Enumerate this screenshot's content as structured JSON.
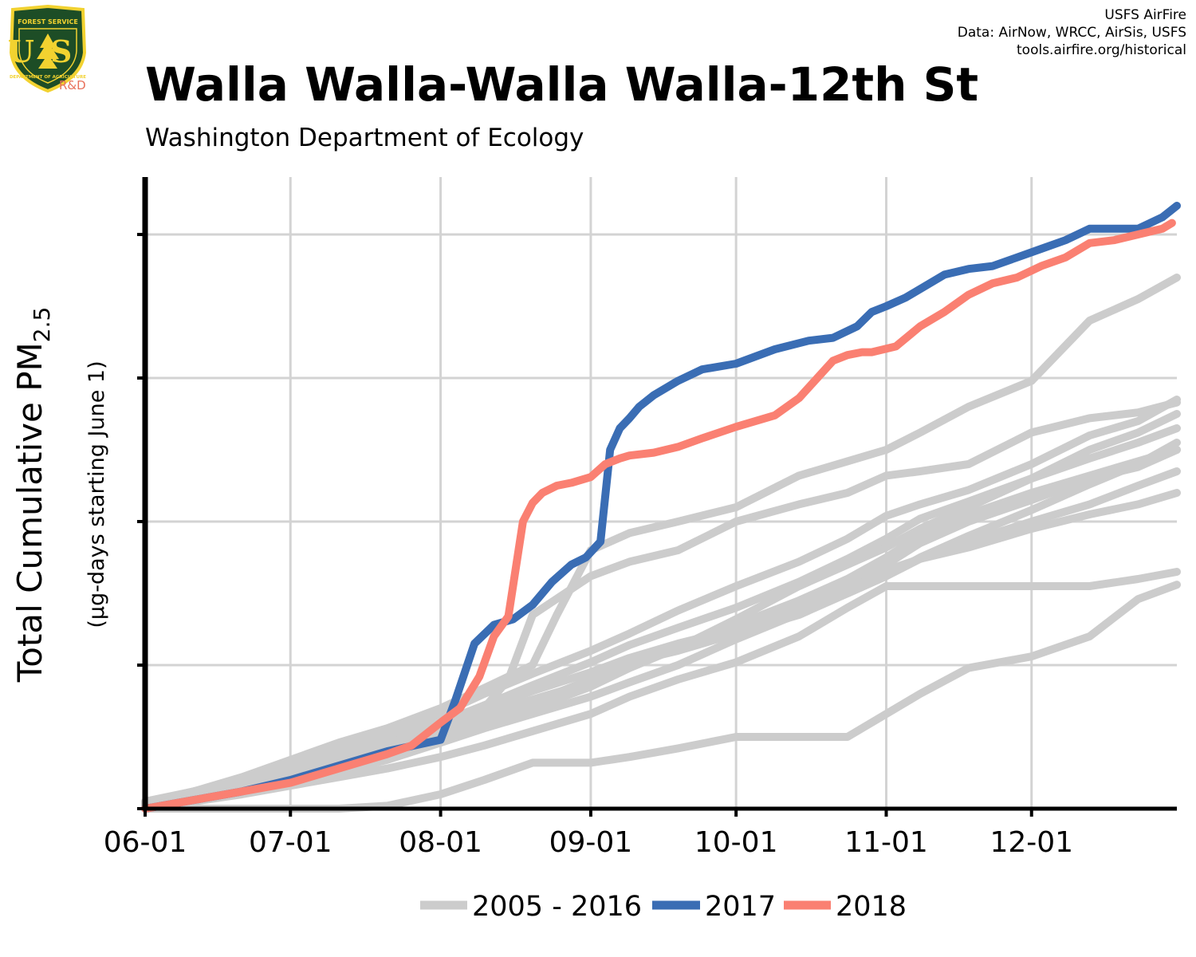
{
  "header": {
    "title": "Walla Walla-Walla Walla-12th St",
    "subtitle": "Washington Department of Ecology",
    "credits": [
      "USFS AirFire",
      "Data: AirNow, WRCC, AirSis, USFS",
      "tools.airfire.org/historical"
    ]
  },
  "logo": {
    "icon": "forest-service-shield-icon",
    "top_text": "FOREST SERVICE",
    "letters": "US",
    "bottom_text": "DEPARTMENT OF AGRICULTURE",
    "tag": "R&D"
  },
  "chart_data": {
    "type": "line",
    "xlabel": "",
    "ylabel": "Total Cumulative PM",
    "ylabel_subscript": "2.5",
    "ylabel_secondary": "(µg-days starting June 1)",
    "x_ticks": [
      "06-01",
      "07-01",
      "08-01",
      "09-01",
      "10-01",
      "11-01",
      "12-01"
    ],
    "x_tick_days": [
      0,
      30,
      61,
      92,
      122,
      153,
      183
    ],
    "xlim": [
      0,
      213
    ],
    "ylim": [
      0,
      4.4
    ],
    "y_grid": [
      1,
      2,
      3,
      4
    ],
    "y_tick_labels": [],
    "grid": true,
    "legend": {
      "position": "bottom",
      "entries": [
        "2005 - 2016",
        "2017",
        "2018"
      ]
    },
    "colors": {
      "historical": "#cccccc",
      "y2017": "#3a6db4",
      "y2018": "#fa8072",
      "grid": "#d3d3d3"
    },
    "series": [
      {
        "name": "2005 - 2016",
        "group": "historical",
        "x": [
          0,
          10,
          20,
          30,
          40,
          50,
          61,
          70,
          80,
          92,
          100,
          110,
          122,
          135,
          145,
          153,
          160,
          170,
          183,
          195,
          205,
          213
        ],
        "y": [
          0.02,
          0.06,
          0.12,
          0.18,
          0.26,
          0.34,
          0.46,
          0.56,
          0.66,
          0.78,
          0.88,
          1.0,
          1.18,
          1.36,
          1.5,
          1.62,
          1.75,
          1.9,
          2.08,
          2.26,
          2.4,
          2.55
        ]
      },
      {
        "name": "2005 - 2016",
        "group": "historical",
        "x": [
          0,
          10,
          20,
          30,
          40,
          50,
          61,
          70,
          80,
          92,
          100,
          110,
          122,
          135,
          145,
          153,
          160,
          170,
          183,
          195,
          205,
          213
        ],
        "y": [
          0.03,
          0.08,
          0.14,
          0.22,
          0.3,
          0.38,
          0.5,
          0.6,
          0.7,
          0.85,
          0.98,
          1.12,
          1.32,
          1.55,
          1.7,
          1.82,
          1.95,
          2.1,
          2.3,
          2.5,
          2.62,
          2.75
        ]
      },
      {
        "name": "2005 - 2016",
        "group": "historical",
        "x": [
          0,
          10,
          20,
          30,
          40,
          50,
          61,
          70,
          80,
          92,
          100,
          110,
          122,
          135,
          145,
          153,
          160,
          170,
          183,
          195,
          205,
          213
        ],
        "y": [
          0.02,
          0.07,
          0.13,
          0.2,
          0.28,
          0.37,
          0.48,
          0.58,
          0.72,
          0.88,
          1.0,
          1.12,
          1.28,
          1.45,
          1.6,
          1.75,
          1.9,
          2.05,
          2.2,
          2.32,
          2.42,
          2.5
        ]
      },
      {
        "name": "2005 - 2016",
        "group": "historical",
        "x": [
          0,
          10,
          20,
          30,
          40,
          50,
          61,
          70,
          80,
          92,
          100,
          110,
          122,
          135,
          145,
          153,
          160,
          170,
          183,
          195,
          205,
          213
        ],
        "y": [
          0.03,
          0.1,
          0.18,
          0.28,
          0.36,
          0.44,
          0.56,
          0.7,
          0.82,
          0.95,
          1.05,
          1.15,
          1.25,
          1.4,
          1.55,
          1.7,
          1.85,
          2.0,
          2.15,
          2.3,
          2.38,
          2.5
        ]
      },
      {
        "name": "2005 - 2016",
        "group": "historical",
        "x": [
          0,
          10,
          20,
          30,
          40,
          50,
          61,
          70,
          80,
          92,
          100,
          110,
          122,
          135,
          145,
          153,
          160,
          170,
          183,
          195,
          205,
          213
        ],
        "y": [
          0.04,
          0.12,
          0.2,
          0.3,
          0.4,
          0.48,
          0.6,
          0.72,
          0.86,
          1.02,
          1.14,
          1.26,
          1.4,
          1.58,
          1.74,
          1.88,
          2.02,
          2.14,
          2.3,
          2.44,
          2.55,
          2.65
        ]
      },
      {
        "name": "2005 - 2016",
        "group": "historical",
        "x": [
          0,
          10,
          20,
          30,
          40,
          50,
          61,
          70,
          80,
          92,
          100,
          110,
          122,
          135,
          145,
          153,
          160,
          170,
          183,
          195,
          205,
          213
        ],
        "y": [
          0.03,
          0.09,
          0.16,
          0.24,
          0.33,
          0.42,
          0.52,
          0.62,
          0.74,
          0.9,
          1.02,
          1.1,
          1.22,
          1.35,
          1.5,
          1.62,
          1.74,
          1.86,
          2.0,
          2.12,
          2.25,
          2.35
        ]
      },
      {
        "name": "2005 - 2016",
        "group": "historical",
        "x": [
          0,
          10,
          20,
          30,
          40,
          50,
          61,
          70,
          80,
          92,
          100,
          110,
          122,
          135,
          145,
          153,
          160,
          170,
          183,
          195,
          205,
          213
        ],
        "y": [
          0.04,
          0.1,
          0.18,
          0.26,
          0.35,
          0.44,
          0.56,
          0.66,
          0.76,
          0.88,
          1.0,
          1.12,
          1.28,
          1.42,
          1.52,
          1.66,
          1.74,
          1.82,
          1.95,
          2.05,
          2.12,
          2.2
        ]
      },
      {
        "name": "2005 - 2016",
        "group": "historical",
        "x": [
          0,
          10,
          20,
          30,
          40,
          50,
          61,
          70,
          80,
          92,
          100,
          110,
          122,
          135,
          145,
          153,
          160,
          170,
          183,
          195,
          205,
          213
        ],
        "y": [
          0.05,
          0.12,
          0.2,
          0.3,
          0.42,
          0.52,
          0.66,
          0.8,
          0.94,
          1.1,
          1.22,
          1.38,
          1.55,
          1.72,
          1.88,
          2.04,
          2.12,
          2.22,
          2.4,
          2.6,
          2.7,
          2.85
        ]
      },
      {
        "name": "2005 - 2016",
        "group": "historical",
        "x": [
          0,
          10,
          20,
          30,
          40,
          50,
          61,
          70,
          75,
          80,
          92,
          100,
          110,
          122,
          135,
          145,
          153,
          160,
          170,
          183,
          195,
          205,
          213
        ],
        "y": [
          0.03,
          0.1,
          0.18,
          0.28,
          0.38,
          0.45,
          0.58,
          0.7,
          0.9,
          1.35,
          1.62,
          1.72,
          1.8,
          2.0,
          2.12,
          2.2,
          2.32,
          2.35,
          2.4,
          2.62,
          2.72,
          2.76,
          2.83
        ]
      },
      {
        "name": "2005 - 2016",
        "group": "historical",
        "x": [
          0,
          10,
          20,
          30,
          40,
          50,
          61,
          70,
          80,
          85,
          92,
          100,
          110,
          122,
          135,
          145,
          153,
          160,
          170,
          183,
          195,
          205,
          213
        ],
        "y": [
          0.04,
          0.12,
          0.22,
          0.34,
          0.46,
          0.56,
          0.7,
          0.84,
          1.0,
          1.35,
          1.8,
          1.92,
          2.0,
          2.1,
          2.32,
          2.42,
          2.5,
          2.62,
          2.8,
          2.98,
          3.4,
          3.55,
          3.7
        ]
      },
      {
        "name": "2005 - 2016",
        "group": "historical",
        "x": [
          0,
          10,
          20,
          30,
          40,
          50,
          61,
          70,
          80,
          92,
          100,
          110,
          122,
          135,
          145,
          153,
          160,
          170,
          183,
          195,
          205,
          213
        ],
        "y": [
          0.02,
          0.05,
          0.1,
          0.16,
          0.22,
          0.28,
          0.36,
          0.44,
          0.54,
          0.66,
          0.78,
          0.9,
          1.02,
          1.2,
          1.4,
          1.55,
          1.55,
          1.55,
          1.55,
          1.55,
          1.6,
          1.65
        ]
      },
      {
        "name": "2005 - 2016",
        "group": "historical",
        "x": [
          0,
          20,
          40,
          50,
          61,
          70,
          80,
          92,
          100,
          110,
          122,
          135,
          145,
          153,
          160,
          170,
          183,
          195,
          205,
          213
        ],
        "y": [
          0.0,
          0.0,
          0.0,
          0.02,
          0.1,
          0.2,
          0.32,
          0.32,
          0.36,
          0.42,
          0.5,
          0.5,
          0.5,
          0.66,
          0.8,
          0.98,
          1.06,
          1.2,
          1.46,
          1.56
        ]
      },
      {
        "name": "2017",
        "group": "y2017",
        "x": [
          0,
          10,
          20,
          30,
          40,
          50,
          61,
          64,
          68,
          72,
          76,
          80,
          84,
          88,
          91,
          94,
          96,
          98,
          100,
          102,
          105,
          110,
          115,
          122,
          130,
          137,
          142,
          147,
          150,
          153,
          157,
          160,
          165,
          170,
          175,
          180,
          185,
          190,
          195,
          200,
          205,
          210,
          213
        ],
        "y": [
          0.0,
          0.06,
          0.12,
          0.2,
          0.3,
          0.4,
          0.48,
          0.75,
          1.15,
          1.28,
          1.32,
          1.42,
          1.58,
          1.7,
          1.75,
          1.86,
          2.5,
          2.65,
          2.72,
          2.8,
          2.88,
          2.98,
          3.06,
          3.1,
          3.2,
          3.26,
          3.28,
          3.36,
          3.46,
          3.5,
          3.56,
          3.62,
          3.72,
          3.76,
          3.78,
          3.84,
          3.9,
          3.96,
          4.04,
          4.04,
          4.04,
          4.12,
          4.2
        ]
      },
      {
        "name": "2018",
        "group": "y2018",
        "x": [
          0,
          10,
          20,
          30,
          40,
          50,
          55,
          61,
          65,
          69,
          72,
          75,
          78,
          80,
          82,
          85,
          88,
          92,
          95,
          98,
          100,
          105,
          110,
          115,
          122,
          130,
          135,
          142,
          145,
          148,
          150,
          155,
          160,
          165,
          170,
          175,
          180,
          185,
          190,
          195,
          200,
          205,
          210,
          212
        ],
        "y": [
          0.0,
          0.06,
          0.12,
          0.18,
          0.28,
          0.38,
          0.44,
          0.6,
          0.7,
          0.92,
          1.2,
          1.34,
          2.0,
          2.13,
          2.2,
          2.25,
          2.27,
          2.31,
          2.4,
          2.44,
          2.46,
          2.48,
          2.52,
          2.58,
          2.66,
          2.74,
          2.86,
          3.12,
          3.16,
          3.18,
          3.18,
          3.22,
          3.36,
          3.46,
          3.58,
          3.66,
          3.7,
          3.78,
          3.84,
          3.94,
          3.96,
          4.0,
          4.04,
          4.08
        ]
      }
    ]
  }
}
